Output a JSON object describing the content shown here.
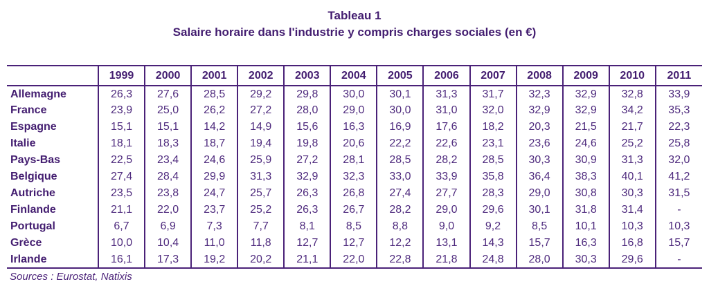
{
  "title": "Tableau 1",
  "subtitle": "Salaire horaire dans l'industrie y compris charges sociales (en €)",
  "source": "Sources : Eurostat, Natixis",
  "colors": {
    "text": "#4a2178",
    "border": "#4a2178"
  },
  "chart_data": {
    "type": "table",
    "title": "Tableau 1 — Salaire horaire dans l'industrie y compris charges sociales (en €)",
    "columns": [
      "",
      "1999",
      "2000",
      "2001",
      "2002",
      "2003",
      "2004",
      "2005",
      "2006",
      "2007",
      "2008",
      "2009",
      "2010",
      "2011"
    ],
    "rows": [
      {
        "label": "Allemagne",
        "values": [
          "26,3",
          "27,6",
          "28,5",
          "29,2",
          "29,8",
          "30,0",
          "30,1",
          "31,3",
          "31,7",
          "32,3",
          "32,9",
          "32,8",
          "33,9"
        ]
      },
      {
        "label": "France",
        "values": [
          "23,9",
          "25,0",
          "26,2",
          "27,2",
          "28,0",
          "29,0",
          "30,0",
          "31,0",
          "32,0",
          "32,9",
          "32,9",
          "34,2",
          "35,3"
        ]
      },
      {
        "label": "Espagne",
        "values": [
          "15,1",
          "15,1",
          "14,2",
          "14,9",
          "15,6",
          "16,3",
          "16,9",
          "17,6",
          "18,2",
          "20,3",
          "21,5",
          "21,7",
          "22,3"
        ]
      },
      {
        "label": "Italie",
        "values": [
          "18,1",
          "18,3",
          "18,7",
          "19,4",
          "19,8",
          "20,6",
          "22,2",
          "22,6",
          "23,1",
          "23,6",
          "24,6",
          "25,2",
          "25,8"
        ]
      },
      {
        "label": "Pays-Bas",
        "values": [
          "22,5",
          "23,4",
          "24,6",
          "25,9",
          "27,2",
          "28,1",
          "28,5",
          "28,2",
          "28,5",
          "30,3",
          "30,9",
          "31,3",
          "32,0"
        ]
      },
      {
        "label": "Belgique",
        "values": [
          "27,4",
          "28,4",
          "29,9",
          "31,3",
          "32,9",
          "32,3",
          "33,0",
          "33,9",
          "35,8",
          "36,4",
          "38,3",
          "40,1",
          "41,2"
        ]
      },
      {
        "label": "Autriche",
        "values": [
          "23,5",
          "23,8",
          "24,7",
          "25,7",
          "26,3",
          "26,8",
          "27,4",
          "27,7",
          "28,3",
          "29,0",
          "30,8",
          "30,3",
          "31,5"
        ]
      },
      {
        "label": "Finlande",
        "values": [
          "21,1",
          "22,0",
          "23,7",
          "25,2",
          "26,3",
          "26,7",
          "28,2",
          "29,0",
          "29,6",
          "30,1",
          "31,8",
          "31,4",
          "-"
        ]
      },
      {
        "label": "Portugal",
        "values": [
          "6,7",
          "6,9",
          "7,3",
          "7,7",
          "8,1",
          "8,5",
          "8,8",
          "9,0",
          "9,2",
          "8,5",
          "10,1",
          "10,3",
          "10,3"
        ]
      },
      {
        "label": "Grèce",
        "values": [
          "10,0",
          "10,4",
          "11,0",
          "11,8",
          "12,7",
          "12,7",
          "12,2",
          "13,1",
          "14,3",
          "15,7",
          "16,3",
          "16,8",
          "15,7"
        ]
      },
      {
        "label": "Irlande",
        "values": [
          "16,1",
          "17,3",
          "19,2",
          "20,2",
          "21,1",
          "22,0",
          "22,8",
          "21,8",
          "24,8",
          "28,0",
          "30,3",
          "29,6",
          "-"
        ]
      }
    ]
  }
}
